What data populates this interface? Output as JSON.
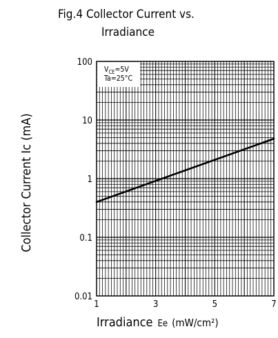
{
  "chart_data": {
    "type": "line",
    "title_line1": "Fig.4 Collector Current vs.",
    "title_line2": "Irradiance",
    "xlabel_main": "Irradiance",
    "xlabel_symbol": "Ee",
    "xlabel_unit": "(mW/cm²)",
    "ylabel": "Collector Current Ic (mA)",
    "conditions": {
      "line1_main": "V",
      "line1_sub": "CE",
      "line1_value": "=5V",
      "line2": "Ta=25°C"
    },
    "x_scale": "linear",
    "y_scale": "log",
    "xlim": [
      1,
      7
    ],
    "ylim": [
      0.01,
      100
    ],
    "x_ticks": [
      "1",
      "3",
      "5",
      "7"
    ],
    "y_ticks": [
      "100",
      "10",
      "1",
      "0.1",
      "0.01"
    ],
    "grid": true,
    "series": [
      {
        "x": [
          1,
          7
        ],
        "y": [
          0.4,
          4.8
        ],
        "color": "#000000"
      }
    ]
  }
}
